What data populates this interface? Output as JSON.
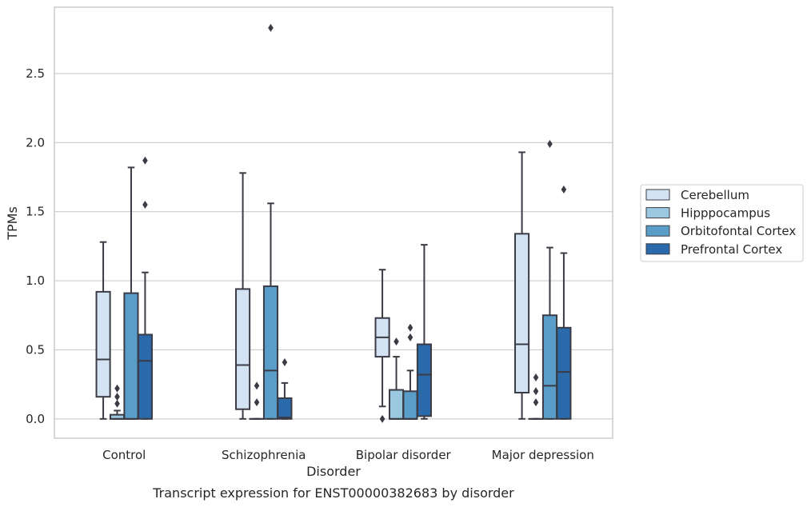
{
  "chart_data": {
    "type": "boxplot",
    "caption": "Transcript expression for ENST00000382683 by disorder",
    "xlabel": "Disorder",
    "ylabel": "TPMs",
    "ylim": [
      -0.14,
      2.98
    ],
    "yticks": [
      0.0,
      0.5,
      1.0,
      1.5,
      2.0,
      2.5
    ],
    "ytick_labels": [
      "0.0",
      "0.5",
      "1.0",
      "1.5",
      "2.0",
      "2.5"
    ],
    "grid": true,
    "legend_position": "right",
    "categories": [
      "Control",
      "Schizophrenia",
      "Bipolar disorder",
      "Major depression"
    ],
    "series": [
      {
        "name": "Cerebellum",
        "color": "#d3e3f3",
        "boxes": [
          {
            "whislo": 0.0,
            "q1": 0.16,
            "med": 0.43,
            "q3": 0.92,
            "whishi": 1.28,
            "fliers": []
          },
          {
            "whislo": 0.0,
            "q1": 0.07,
            "med": 0.39,
            "q3": 0.94,
            "whishi": 1.78,
            "fliers": []
          },
          {
            "whislo": 0.09,
            "q1": 0.45,
            "med": 0.59,
            "q3": 0.73,
            "whishi": 1.08,
            "fliers": [
              0.0
            ]
          },
          {
            "whislo": 0.0,
            "q1": 0.19,
            "med": 0.54,
            "q3": 1.34,
            "whishi": 1.93,
            "fliers": []
          }
        ]
      },
      {
        "name": "Hipppocampus",
        "color": "#9ac8e0",
        "boxes": [
          {
            "whislo": 0.0,
            "q1": 0.0,
            "med": 0.0,
            "q3": 0.03,
            "whishi": 0.06,
            "fliers": [
              0.11,
              0.16,
              0.22
            ]
          },
          {
            "whislo": 0.0,
            "q1": 0.0,
            "med": 0.0,
            "q3": 0.0,
            "whishi": 0.0,
            "fliers": [
              0.12,
              0.24
            ]
          },
          {
            "whislo": 0.0,
            "q1": 0.0,
            "med": 0.0,
            "q3": 0.21,
            "whishi": 0.45,
            "fliers": [
              0.56
            ]
          },
          {
            "whislo": 0.0,
            "q1": 0.0,
            "med": 0.0,
            "q3": 0.0,
            "whishi": 0.0,
            "fliers": [
              0.12,
              0.2,
              0.3
            ]
          }
        ]
      },
      {
        "name": "Orbitofontal Cortex",
        "color": "#5a9dc9",
        "boxes": [
          {
            "whislo": 0.0,
            "q1": 0.0,
            "med": 0.0,
            "q3": 0.91,
            "whishi": 1.82,
            "fliers": []
          },
          {
            "whislo": 0.0,
            "q1": 0.0,
            "med": 0.35,
            "q3": 0.96,
            "whishi": 1.56,
            "fliers": [
              2.83
            ]
          },
          {
            "whislo": 0.0,
            "q1": 0.0,
            "med": 0.0,
            "q3": 0.2,
            "whishi": 0.35,
            "fliers": [
              0.59,
              0.66
            ]
          },
          {
            "whislo": 0.0,
            "q1": 0.0,
            "med": 0.24,
            "q3": 0.75,
            "whishi": 1.24,
            "fliers": [
              1.99
            ]
          }
        ]
      },
      {
        "name": "Prefrontal Cortex",
        "color": "#2a69aa",
        "boxes": [
          {
            "whislo": 0.0,
            "q1": 0.0,
            "med": 0.42,
            "q3": 0.61,
            "whishi": 1.06,
            "fliers": [
              1.55,
              1.87
            ]
          },
          {
            "whislo": 0.0,
            "q1": 0.0,
            "med": 0.01,
            "q3": 0.15,
            "whishi": 0.26,
            "fliers": [
              0.41
            ]
          },
          {
            "whislo": 0.0,
            "q1": 0.02,
            "med": 0.32,
            "q3": 0.54,
            "whishi": 1.26,
            "fliers": []
          },
          {
            "whislo": 0.0,
            "q1": 0.0,
            "med": 0.34,
            "q3": 0.66,
            "whishi": 1.2,
            "fliers": [
              1.66
            ]
          }
        ]
      }
    ]
  }
}
